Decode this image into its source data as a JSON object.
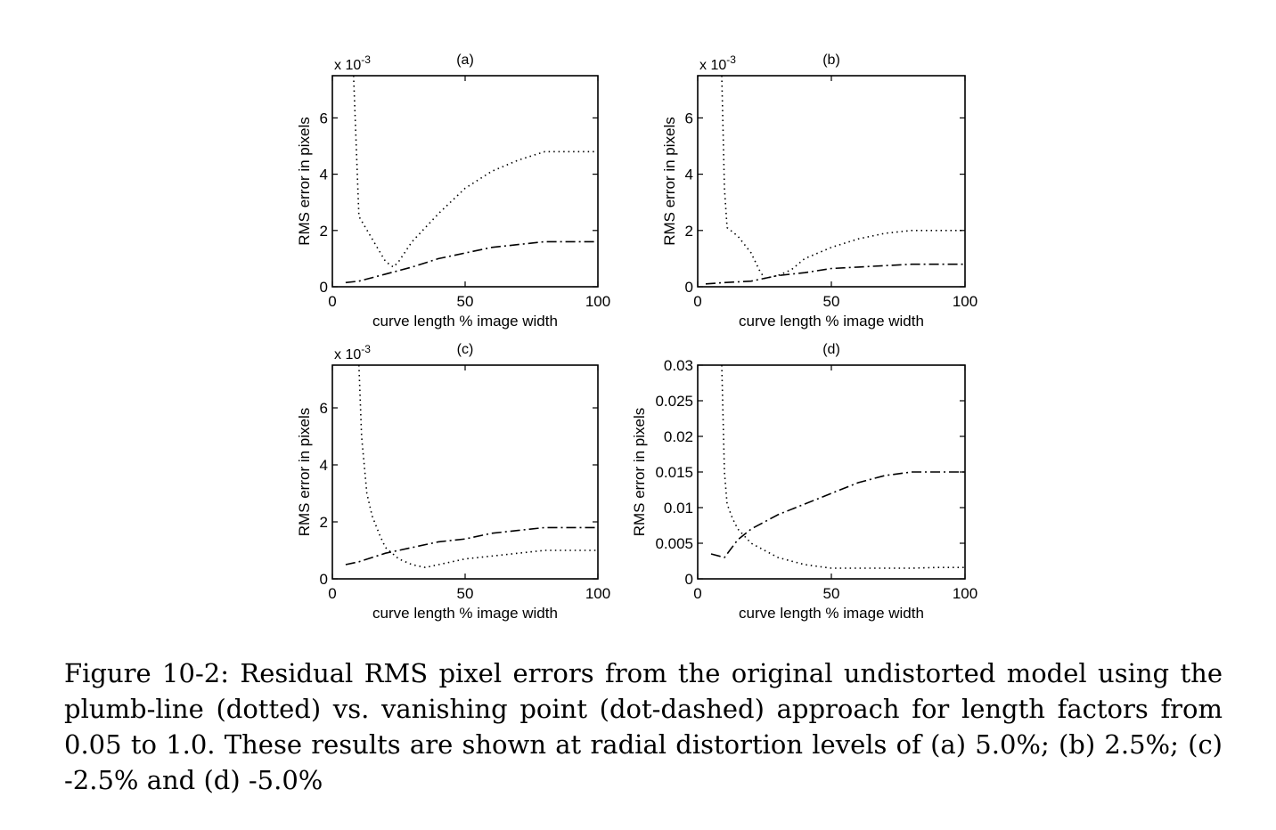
{
  "caption": "Figure 10-2: Residual RMS pixel errors from the original undistorted model using the plumb-line (dotted) vs. vanishing point (dot-dashed) approach for length factors from 0.05 to 1.0. These results are shown at radial distortion levels of (a) 5.0%; (b) 2.5%; (c) -2.5% and (d) -5.0%",
  "chart_data": [
    {
      "type": "line",
      "title": "(a)",
      "xlabel": "curve length % image width",
      "ylabel": "RMS error in pixels",
      "exponent_label": "x 10",
      "exponent_power": "-3",
      "xlim": [
        0,
        100
      ],
      "ylim": [
        0,
        0.0075
      ],
      "xticks": [
        0,
        50,
        100
      ],
      "xtick_labels": [
        "0",
        "50",
        "100"
      ],
      "yticks": [
        0,
        0.002,
        0.004,
        0.006
      ],
      "ytick_labels": [
        "0",
        "2",
        "4",
        "6"
      ],
      "series": [
        {
          "style": "dotted",
          "x": [
            8,
            10,
            15,
            20,
            23,
            25,
            30,
            40,
            50,
            60,
            70,
            80,
            90,
            100
          ],
          "y": [
            0.0075,
            0.0025,
            0.0017,
            0.0009,
            0.0007,
            0.0009,
            0.0016,
            0.0026,
            0.0035,
            0.0041,
            0.0045,
            0.0048,
            0.0048,
            0.0048
          ]
        },
        {
          "style": "dashdot",
          "x": [
            5,
            10,
            20,
            30,
            40,
            50,
            60,
            70,
            80,
            90,
            100
          ],
          "y": [
            0.00015,
            0.0002,
            0.00045,
            0.0007,
            0.001,
            0.0012,
            0.0014,
            0.0015,
            0.0016,
            0.0016,
            0.0016
          ]
        }
      ]
    },
    {
      "type": "line",
      "title": "(b)",
      "xlabel": "curve length % image width",
      "ylabel": "RMS error in pixels",
      "exponent_label": "x 10",
      "exponent_power": "-3",
      "xlim": [
        0,
        100
      ],
      "ylim": [
        0,
        0.0075
      ],
      "xticks": [
        0,
        50,
        100
      ],
      "xtick_labels": [
        "0",
        "50",
        "100"
      ],
      "yticks": [
        0,
        0.002,
        0.004,
        0.006
      ],
      "ytick_labels": [
        "0",
        "2",
        "4",
        "6"
      ],
      "series": [
        {
          "style": "dotted",
          "x": [
            9,
            10,
            11,
            15,
            20,
            23,
            25,
            30,
            35,
            40,
            50,
            60,
            70,
            80,
            90,
            100
          ],
          "y": [
            0.0075,
            0.0035,
            0.0021,
            0.0018,
            0.0012,
            0.0006,
            0.0003,
            0.0004,
            0.0006,
            0.001,
            0.0014,
            0.0017,
            0.0019,
            0.002,
            0.002,
            0.002
          ]
        },
        {
          "style": "dashdot",
          "x": [
            3,
            10,
            20,
            30,
            40,
            50,
            60,
            70,
            80,
            90,
            100
          ],
          "y": [
            0.0001,
            0.00015,
            0.0002,
            0.0004,
            0.0005,
            0.00065,
            0.0007,
            0.00075,
            0.0008,
            0.0008,
            0.0008
          ]
        }
      ]
    },
    {
      "type": "line",
      "title": "(c)",
      "xlabel": "curve length % image width",
      "ylabel": "RMS error in pixels",
      "exponent_label": "x 10",
      "exponent_power": "-3",
      "xlim": [
        0,
        100
      ],
      "ylim": [
        0,
        0.0075
      ],
      "xticks": [
        0,
        50,
        100
      ],
      "xtick_labels": [
        "0",
        "50",
        "100"
      ],
      "yticks": [
        0,
        0.002,
        0.004,
        0.006
      ],
      "ytick_labels": [
        "0",
        "2",
        "4",
        "6"
      ],
      "series": [
        {
          "style": "dotted",
          "x": [
            10,
            11,
            13,
            15,
            18,
            20,
            25,
            30,
            35,
            40,
            50,
            60,
            70,
            80,
            90,
            100
          ],
          "y": [
            0.0075,
            0.005,
            0.003,
            0.0022,
            0.0015,
            0.0011,
            0.0007,
            0.0005,
            0.0004,
            0.0005,
            0.0007,
            0.0008,
            0.0009,
            0.001,
            0.001,
            0.001
          ]
        },
        {
          "style": "dashdot",
          "x": [
            5,
            10,
            20,
            30,
            40,
            50,
            60,
            70,
            80,
            90,
            100
          ],
          "y": [
            0.0005,
            0.0006,
            0.0009,
            0.0011,
            0.0013,
            0.0014,
            0.0016,
            0.0017,
            0.0018,
            0.0018,
            0.0018
          ]
        }
      ]
    },
    {
      "type": "line",
      "title": "(d)",
      "xlabel": "curve length % image width",
      "ylabel": "RMS error in pixels",
      "xlim": [
        0,
        100
      ],
      "ylim": [
        0,
        0.03
      ],
      "xticks": [
        0,
        50,
        100
      ],
      "xtick_labels": [
        "0",
        "50",
        "100"
      ],
      "yticks": [
        0,
        0.005,
        0.01,
        0.015,
        0.02,
        0.025,
        0.03
      ],
      "ytick_labels": [
        "0",
        "0.005",
        "0.01",
        "0.015",
        "0.02",
        "0.025",
        "0.03"
      ],
      "series": [
        {
          "style": "dotted",
          "x": [
            9,
            10,
            11,
            13,
            15,
            20,
            25,
            30,
            40,
            50,
            60,
            70,
            80,
            90,
            100
          ],
          "y": [
            0.03,
            0.015,
            0.0105,
            0.0085,
            0.007,
            0.005,
            0.004,
            0.003,
            0.002,
            0.0015,
            0.0015,
            0.0015,
            0.0015,
            0.0016,
            0.0016
          ]
        },
        {
          "style": "dashdot",
          "x": [
            5,
            10,
            15,
            20,
            30,
            40,
            50,
            60,
            70,
            80,
            90,
            100
          ],
          "y": [
            0.0035,
            0.003,
            0.0055,
            0.007,
            0.009,
            0.0105,
            0.012,
            0.0135,
            0.0145,
            0.015,
            0.015,
            0.015
          ]
        }
      ]
    }
  ]
}
